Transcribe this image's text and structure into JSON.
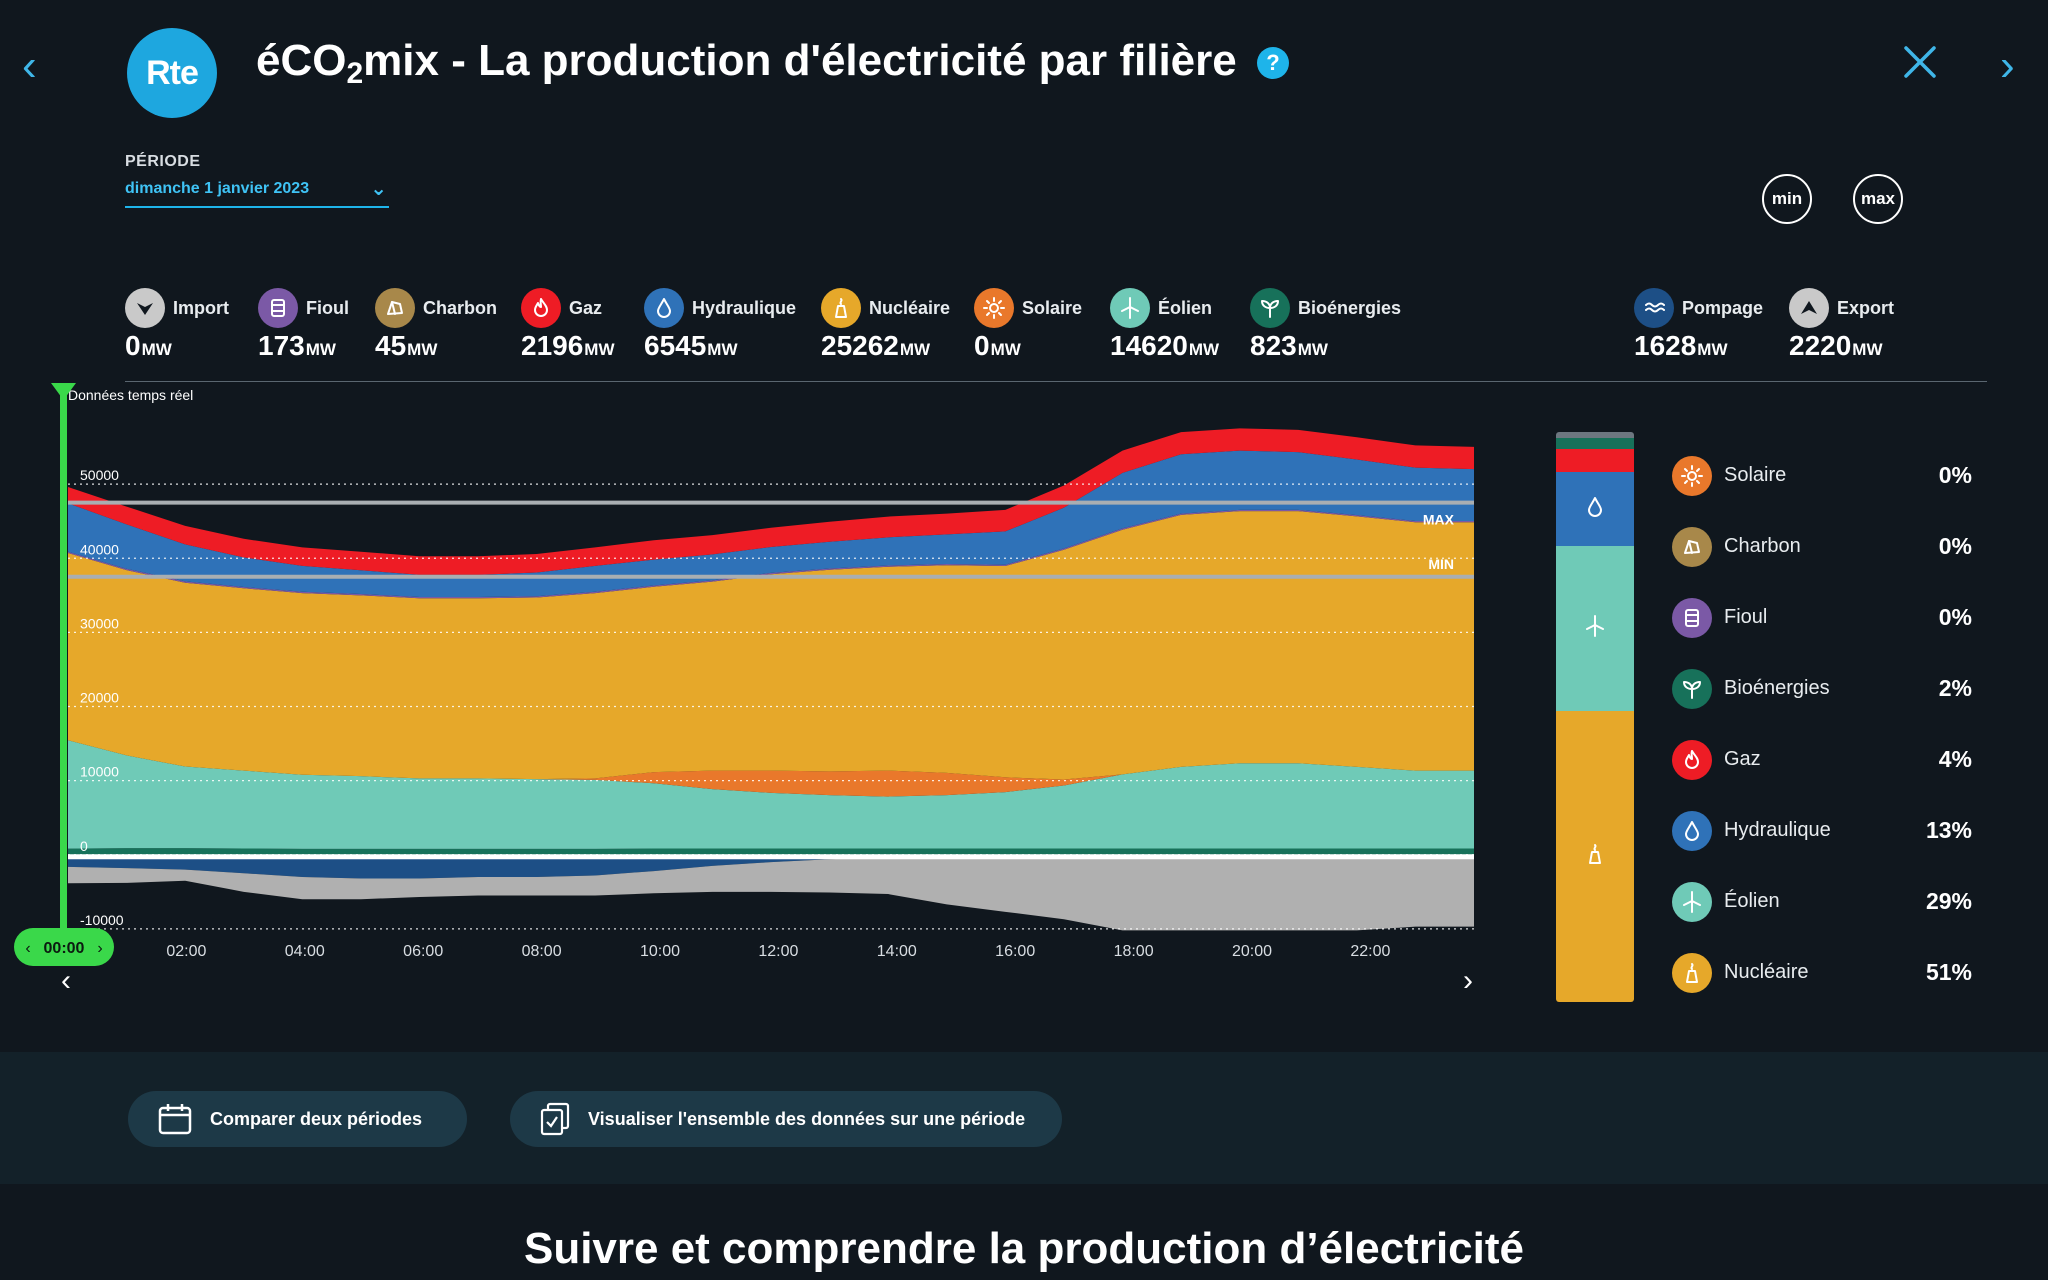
{
  "header": {
    "logo_text": "Rte",
    "title_pre": "éCO",
    "title_sub": "2",
    "title_post": "mix - La production d'électricité par filière",
    "help_label": "?"
  },
  "periode": {
    "label": "PÉRIODE",
    "value": "dimanche 1 janvier 2023"
  },
  "buttons": {
    "min": "min",
    "max": "max"
  },
  "sources": [
    {
      "key": "import",
      "label": "Import",
      "value": "0",
      "unit": "MW",
      "color": "#c9c9c9",
      "icon": "import-arrow-icon"
    },
    {
      "key": "fioul",
      "label": "Fioul",
      "value": "173",
      "unit": "MW",
      "color": "#7b59a6",
      "icon": "oil-barrel-icon"
    },
    {
      "key": "charbon",
      "label": "Charbon",
      "value": "45",
      "unit": "MW",
      "color": "#a8884a",
      "icon": "coal-icon"
    },
    {
      "key": "gaz",
      "label": "Gaz",
      "value": "2196",
      "unit": "MW",
      "color": "#ee1c25",
      "icon": "flame-icon"
    },
    {
      "key": "hydraulique",
      "label": "Hydraulique",
      "value": "6545",
      "unit": "MW",
      "color": "#2f72b8",
      "icon": "water-drop-icon"
    },
    {
      "key": "nucleaire",
      "label": "Nucléaire",
      "value": "25262",
      "unit": "MW",
      "color": "#e6a82a",
      "icon": "nuclear-plant-icon"
    },
    {
      "key": "solaire",
      "label": "Solaire",
      "value": "0",
      "unit": "MW",
      "color": "#e9782b",
      "icon": "sun-icon"
    },
    {
      "key": "eolien",
      "label": "Éolien",
      "value": "14620",
      "unit": "MW",
      "color": "#6fcab7",
      "icon": "wind-turbine-icon"
    },
    {
      "key": "bioenergies",
      "label": "Bioénergies",
      "value": "823",
      "unit": "MW",
      "color": "#17715a",
      "icon": "leaf-icon"
    },
    {
      "key": "pompage",
      "label": "Pompage",
      "value": "1628",
      "unit": "MW",
      "color": "#1d4f86",
      "icon": "waves-icon"
    },
    {
      "key": "export",
      "label": "Export",
      "value": "2220",
      "unit": "MW",
      "color": "#c9c9c9",
      "icon": "export-arrow-icon"
    }
  ],
  "chart_data": {
    "type": "area",
    "title": "Données temps réel",
    "x": [
      "00:00",
      "01:00",
      "02:00",
      "03:00",
      "04:00",
      "05:00",
      "06:00",
      "07:00",
      "08:00",
      "09:00",
      "10:00",
      "11:00",
      "12:00",
      "13:00",
      "14:00",
      "15:00",
      "16:00",
      "17:00",
      "18:00",
      "19:00",
      "20:00",
      "21:00",
      "22:00",
      "23:00",
      "23:45"
    ],
    "x_tick_labels": [
      "02:00",
      "04:00",
      "06:00",
      "08:00",
      "10:00",
      "12:00",
      "14:00",
      "16:00",
      "18:00",
      "20:00",
      "22:00"
    ],
    "y_ticks": [
      "-10000",
      "0",
      "10000",
      "20000",
      "30000",
      "40000",
      "50000"
    ],
    "ylim": [
      -11500,
      60000
    ],
    "cursor_label": "00:00",
    "max_label": "MAX",
    "min_label": "MIN",
    "max_value": 47500,
    "min_value": 37500,
    "series": [
      {
        "name": "Bioénergies",
        "color": "#17715a",
        "values": [
          823,
          900,
          900,
          850,
          800,
          800,
          800,
          800,
          800,
          800,
          850,
          850,
          850,
          850,
          850,
          850,
          850,
          850,
          850,
          850,
          850,
          850,
          850,
          850,
          850
        ]
      },
      {
        "name": "Éolien",
        "color": "#6fcab7",
        "values": [
          14620,
          12500,
          11000,
          10500,
          10000,
          9800,
          9500,
          9500,
          9400,
          9300,
          8800,
          8000,
          7500,
          7200,
          7000,
          7200,
          7600,
          8500,
          10000,
          11000,
          11500,
          11500,
          11000,
          10500,
          10500
        ]
      },
      {
        "name": "Solaire",
        "color": "#e9782b",
        "values": [
          0,
          0,
          0,
          0,
          0,
          0,
          0,
          0,
          0,
          200,
          1500,
          2500,
          3000,
          3200,
          3500,
          3000,
          2000,
          800,
          0,
          0,
          0,
          0,
          0,
          0,
          0
        ]
      },
      {
        "name": "Nucléaire",
        "color": "#e6a82a",
        "values": [
          25262,
          25000,
          24800,
          24600,
          24500,
          24400,
          24300,
          24300,
          24500,
          25000,
          25000,
          25500,
          26500,
          27200,
          27500,
          28000,
          28500,
          31000,
          33000,
          34000,
          34000,
          34000,
          33800,
          33500,
          33500
        ]
      },
      {
        "name": "Fioul",
        "color": "#7b59a6",
        "values": [
          173,
          173,
          173,
          173,
          173,
          173,
          173,
          173,
          173,
          173,
          173,
          173,
          173,
          173,
          173,
          173,
          173,
          173,
          173,
          173,
          173,
          173,
          173,
          173,
          173
        ]
      },
      {
        "name": "Hydraulique",
        "color": "#2f72b8",
        "values": [
          6545,
          6000,
          5000,
          4000,
          3500,
          3200,
          3000,
          3000,
          3200,
          3500,
          3500,
          3500,
          3500,
          3600,
          3800,
          4000,
          4500,
          5500,
          7500,
          8000,
          8000,
          7800,
          7500,
          7200,
          7000
        ]
      },
      {
        "name": "Gaz",
        "color": "#ee1c25",
        "values": [
          2196,
          2400,
          2500,
          2500,
          2500,
          2500,
          2500,
          2500,
          2500,
          2500,
          2600,
          2600,
          2600,
          2700,
          2800,
          2800,
          2900,
          3000,
          3000,
          3000,
          3000,
          3000,
          3000,
          3000,
          3000
        ]
      },
      {
        "name": "Pompage",
        "color": "#1d4f86",
        "values": [
          -1628,
          -1800,
          -2000,
          -2500,
          -3000,
          -3200,
          -3200,
          -3000,
          -3000,
          -2800,
          -2200,
          -1500,
          -1000,
          -600,
          -300,
          -200,
          -200,
          -200,
          -200,
          -200,
          -200,
          -200,
          -200,
          -200,
          -200
        ]
      },
      {
        "name": "Export",
        "color": "#b0b0b0",
        "values": [
          -2220,
          -2000,
          -1500,
          -2500,
          -3000,
          -2800,
          -2500,
          -2500,
          -2500,
          -2700,
          -3000,
          -3500,
          -4000,
          -4500,
          -5000,
          -6500,
          -7500,
          -8500,
          -10000,
          -10000,
          -10000,
          -10000,
          -10000,
          -9500,
          -9500
        ]
      }
    ]
  },
  "mix": {
    "items": [
      {
        "name": "Solaire",
        "pct": "0%",
        "value": 0,
        "color": "#e9782b",
        "icon": "sun-icon"
      },
      {
        "name": "Charbon",
        "pct": "0%",
        "value": 0,
        "color": "#a8884a",
        "icon": "coal-icon"
      },
      {
        "name": "Fioul",
        "pct": "0%",
        "value": 0,
        "color": "#7b59a6",
        "icon": "oil-barrel-icon"
      },
      {
        "name": "Bioénergies",
        "pct": "2%",
        "value": 2,
        "color": "#17715a",
        "icon": "leaf-icon"
      },
      {
        "name": "Gaz",
        "pct": "4%",
        "value": 4,
        "color": "#ee1c25",
        "icon": "flame-icon"
      },
      {
        "name": "Hydraulique",
        "pct": "13%",
        "value": 13,
        "color": "#2f72b8",
        "icon": "water-drop-icon"
      },
      {
        "name": "Éolien",
        "pct": "29%",
        "value": 29,
        "color": "#6fcab7",
        "icon": "wind-turbine-icon"
      },
      {
        "name": "Nucléaire",
        "pct": "51%",
        "value": 51,
        "color": "#e6a82a",
        "icon": "nuclear-plant-icon"
      }
    ]
  },
  "actions": {
    "compare": "Comparer deux périodes",
    "visualize": "Visualiser l'ensemble des données sur une période"
  },
  "bottom_title": "Suivre et comprendre la production d’électricité"
}
